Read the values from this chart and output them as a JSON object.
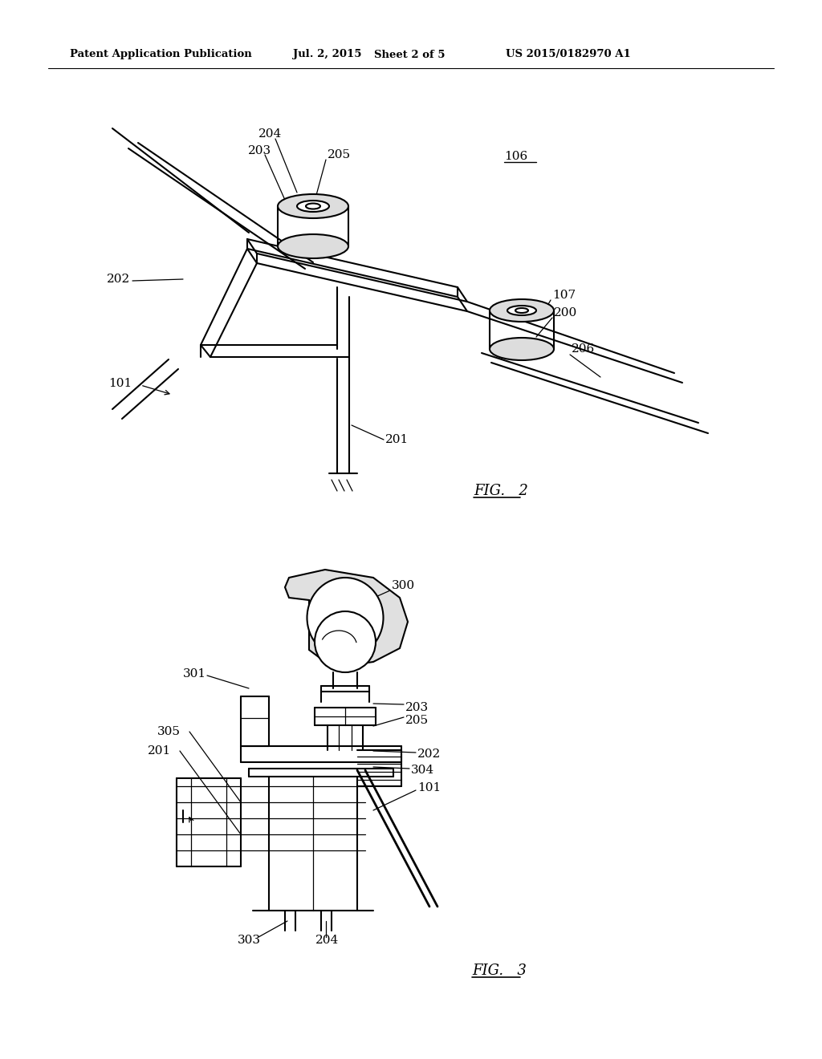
{
  "background_color": "#ffffff",
  "line_color": "#000000",
  "lw": 1.5,
  "lw_thin": 0.9,
  "lw_thick": 2.2,
  "header_left": "Patent Application Publication",
  "header_mid1": "Jul. 2, 2015",
  "header_mid2": "Sheet 2 of 5",
  "header_right": "US 2015/0182970 A1",
  "fig2_caption": "FIG.   2",
  "fig3_caption": "FIG.   3",
  "label_fontsize": 11,
  "caption_fontsize": 13,
  "header_fontsize": 9.5
}
